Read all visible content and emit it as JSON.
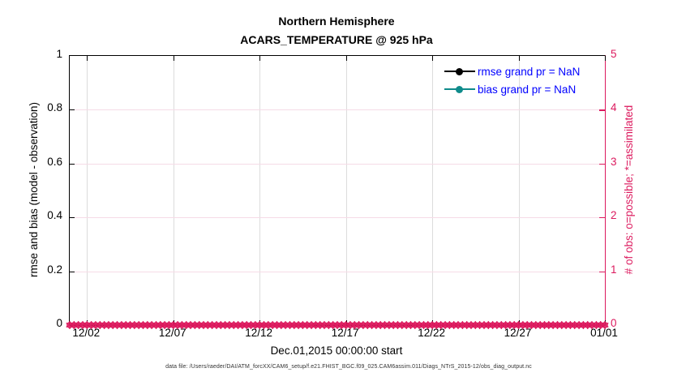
{
  "title": {
    "line1": "Northern Hemisphere",
    "line2": "ACARS_TEMPERATURE @ 925 hPa"
  },
  "footer": "data file: /Users/raeder/DAI/ATM_forcXX/CAM6_setup/f.e21.FHIST_BGC.f09_025.CAM6assim.011/Diags_NTrS_2015-12/obs_diag_output.nc",
  "chart_data": {
    "type": "line",
    "title": "Northern Hemisphere ACARS_TEMPERATURE @ 925 hPa",
    "xlabel": "Dec.01,2015 00:00:00 start",
    "ylabel_left": "rmse and bias (model - observation)",
    "ylabel_right": "# of obs: o=possible; *=assimilated",
    "x_ticks": [
      "12/02",
      "12/07",
      "12/12",
      "12/17",
      "12/22",
      "12/27",
      "01/01"
    ],
    "x_tick_days": [
      1,
      6,
      11,
      16,
      21,
      26,
      31
    ],
    "x_range_days": [
      0,
      31
    ],
    "y_left_ticks": [
      "0",
      "0.2",
      "0.4",
      "0.6",
      "0.8",
      "1"
    ],
    "y_left_tick_values": [
      0,
      0.2,
      0.4,
      0.6,
      0.8,
      1
    ],
    "y_left_range": [
      0,
      1
    ],
    "y_right_ticks": [
      "0",
      "1",
      "2",
      "3",
      "4",
      "5"
    ],
    "y_right_tick_values": [
      0,
      1,
      2,
      3,
      4,
      5
    ],
    "y_right_range": [
      0,
      5
    ],
    "grid": true,
    "legend_position": "top-right-inside",
    "series": [
      {
        "name": "rmse",
        "legend_label": "rmse grand pr = NaN",
        "color": "#000000",
        "values": null,
        "note": "all NaN - no curve plotted"
      },
      {
        "name": "bias",
        "legend_label": "bias grand pr = NaN",
        "color": "#0f8b8b",
        "values": null,
        "note": "all NaN - no curve plotted"
      }
    ],
    "obs_counts": {
      "marker_possible": "o",
      "marker_assimilated": "*",
      "value_at_all_times": 0,
      "n_times": 125,
      "color": "#dc1a5e",
      "note": "dense band of o and * markers along right-axis 0 line from 12/01 to 01/01"
    }
  },
  "legend": {
    "items": [
      {
        "label": "rmse grand pr = NaN",
        "color": "#000000"
      },
      {
        "label": "bias grand pr = NaN",
        "color": "#0f8b8b"
      }
    ]
  },
  "colors": {
    "crimson": "#dc1a5e",
    "teal": "#0f8b8b",
    "legend_text": "#0000ff",
    "grid_vertical": "#dcdcdc",
    "grid_horizontal": "#f6dbe6",
    "axis": "#000000",
    "footer_text": "#333333"
  }
}
